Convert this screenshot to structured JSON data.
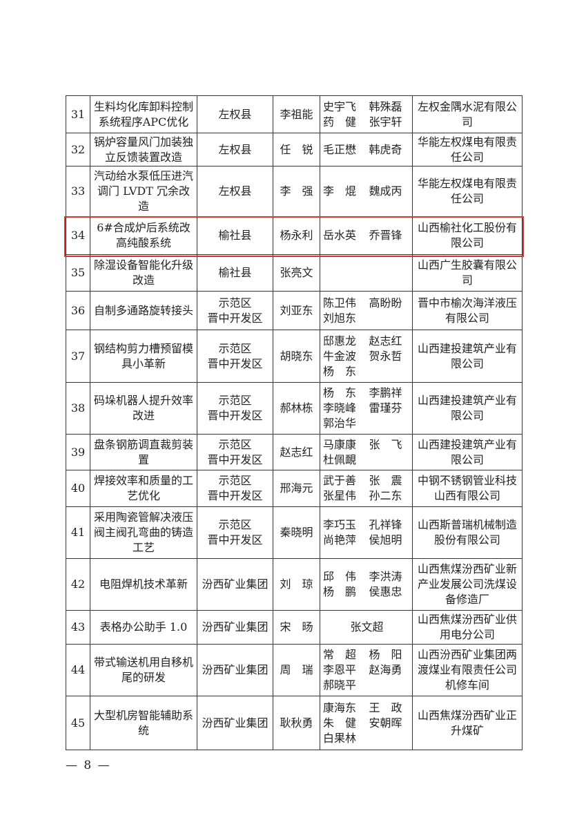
{
  "highlight_color": "#d9352b",
  "table": {
    "rows": [
      {
        "no": "31",
        "project": "生料均化库卸料控制系统程序APC优化",
        "region": [
          "左权县"
        ],
        "leader": "李祖能",
        "members": [
          "史宇飞",
          "韩殊磊",
          "药　健",
          "张宇轩"
        ],
        "company": "左权金隅水泥有限公司"
      },
      {
        "no": "32",
        "project": "锅炉容量风门加装独立反馈装置改造",
        "region": [
          "左权县"
        ],
        "leader": "任　锐",
        "members": [
          "毛正懋",
          "韩虎奇"
        ],
        "company": "华能左权煤电有限责任公司"
      },
      {
        "no": "33",
        "project": "汽动给水泵低压进汽调门 LVDT 冗余改造",
        "region": [
          "左权县"
        ],
        "leader": "李　强",
        "members": [
          "李　焜",
          "魏成丙"
        ],
        "company": "华能左权煤电有限责任公司"
      },
      {
        "no": "34",
        "project": "6#合成炉后系统改高纯酸系统",
        "region": [
          "榆社县"
        ],
        "leader": "杨永利",
        "members": [
          "岳水英",
          "乔晋锋"
        ],
        "company": "山西榆社化工股份有限公司"
      },
      {
        "no": "35",
        "project": "除湿设备智能化升级改造",
        "region": [
          "榆社县"
        ],
        "leader": "张亮文",
        "members": [],
        "company": "山西广生胶囊有限公司"
      },
      {
        "no": "36",
        "project": "自制多通路旋转接头",
        "region": [
          "示范区",
          "晋中开发区"
        ],
        "leader": "刘亚东",
        "members": [
          "陈卫伟",
          "高盼盼",
          "刘旭东"
        ],
        "company": "晋中市榆次海洋液压有限公司"
      },
      {
        "no": "37",
        "project": "钢结构剪力槽预留模具小革新",
        "region": [
          "示范区",
          "晋中开发区"
        ],
        "leader": "胡晓东",
        "members": [
          "邸惠龙",
          "赵志红",
          "牛金波",
          "贺永哲",
          "杨　东"
        ],
        "company": "山西建投建筑产业有限公司"
      },
      {
        "no": "38",
        "project": "码垛机器人提升效率改进",
        "region": [
          "示范区",
          "晋中开发区"
        ],
        "leader": "郝林栋",
        "members": [
          "杨　东",
          "李鹏祥",
          "李晓峰",
          "雷瑾芬",
          "郭治华"
        ],
        "company": "山西建投建筑产业有限公司"
      },
      {
        "no": "39",
        "project": "盘条钢筋调直裁剪装置",
        "region": [
          "示范区",
          "晋中开发区"
        ],
        "leader": "赵志红",
        "members": [
          "马康康",
          "张　飞",
          "杜佩靦"
        ],
        "company": "山西建投建筑产业有限公司"
      },
      {
        "no": "40",
        "project": "焊接效率和质量的工艺优化",
        "region": [
          "示范区",
          "晋中开发区"
        ],
        "leader": "邢海元",
        "members": [
          "武于善",
          "张　震",
          "张星伟",
          "孙二东"
        ],
        "company": "中钢不锈钢管业科技山西有限公司"
      },
      {
        "no": "41",
        "project": "采用陶瓷管解决液压阀主阀孔弯曲的铸造工艺",
        "region": [
          "示范区",
          "晋中开发区"
        ],
        "leader": "秦晓明",
        "members": [
          "李巧玉",
          "孔祥锋",
          "尚艳萍",
          "侯旭明"
        ],
        "company": "山西斯普瑞机械制造股份有限公司"
      },
      {
        "no": "42",
        "project": "电阻焊机技术革新",
        "region": [
          "汾西矿业集团"
        ],
        "leader": "刘　琼",
        "members": [
          "邱　伟",
          "李洪涛",
          "杨　鹏",
          "侯惠忠"
        ],
        "company": "山西焦煤汾西矿业新产业发展公司洗煤设备修造厂"
      },
      {
        "no": "43",
        "project": "表格办公助手 1.0",
        "region": [
          "汾西矿业集团"
        ],
        "leader": "宋　旸",
        "members": [
          "张文超"
        ],
        "company": "山西焦煤汾西矿业供用电分公司"
      },
      {
        "no": "44",
        "project": "带式输送机用自移机尾的研发",
        "region": [
          "汾西矿业集团"
        ],
        "leader": "周　瑞",
        "members": [
          "常　超",
          "杨　阳",
          "李恩平",
          "赵海勇",
          "郝晓平"
        ],
        "company": "山西汾西矿业集团两渡煤业有限责任公司机修车间"
      },
      {
        "no": "45",
        "project": "大型机房智能辅助系统",
        "region": [
          "汾西矿业集团"
        ],
        "leader": "耿秋勇",
        "members": [
          "康海东",
          "王　政",
          "朱　健",
          "安朝晖",
          "白果林"
        ],
        "company": "山西焦煤汾西矿业正升煤矿"
      }
    ]
  },
  "footer": {
    "page": "— 8 —"
  }
}
